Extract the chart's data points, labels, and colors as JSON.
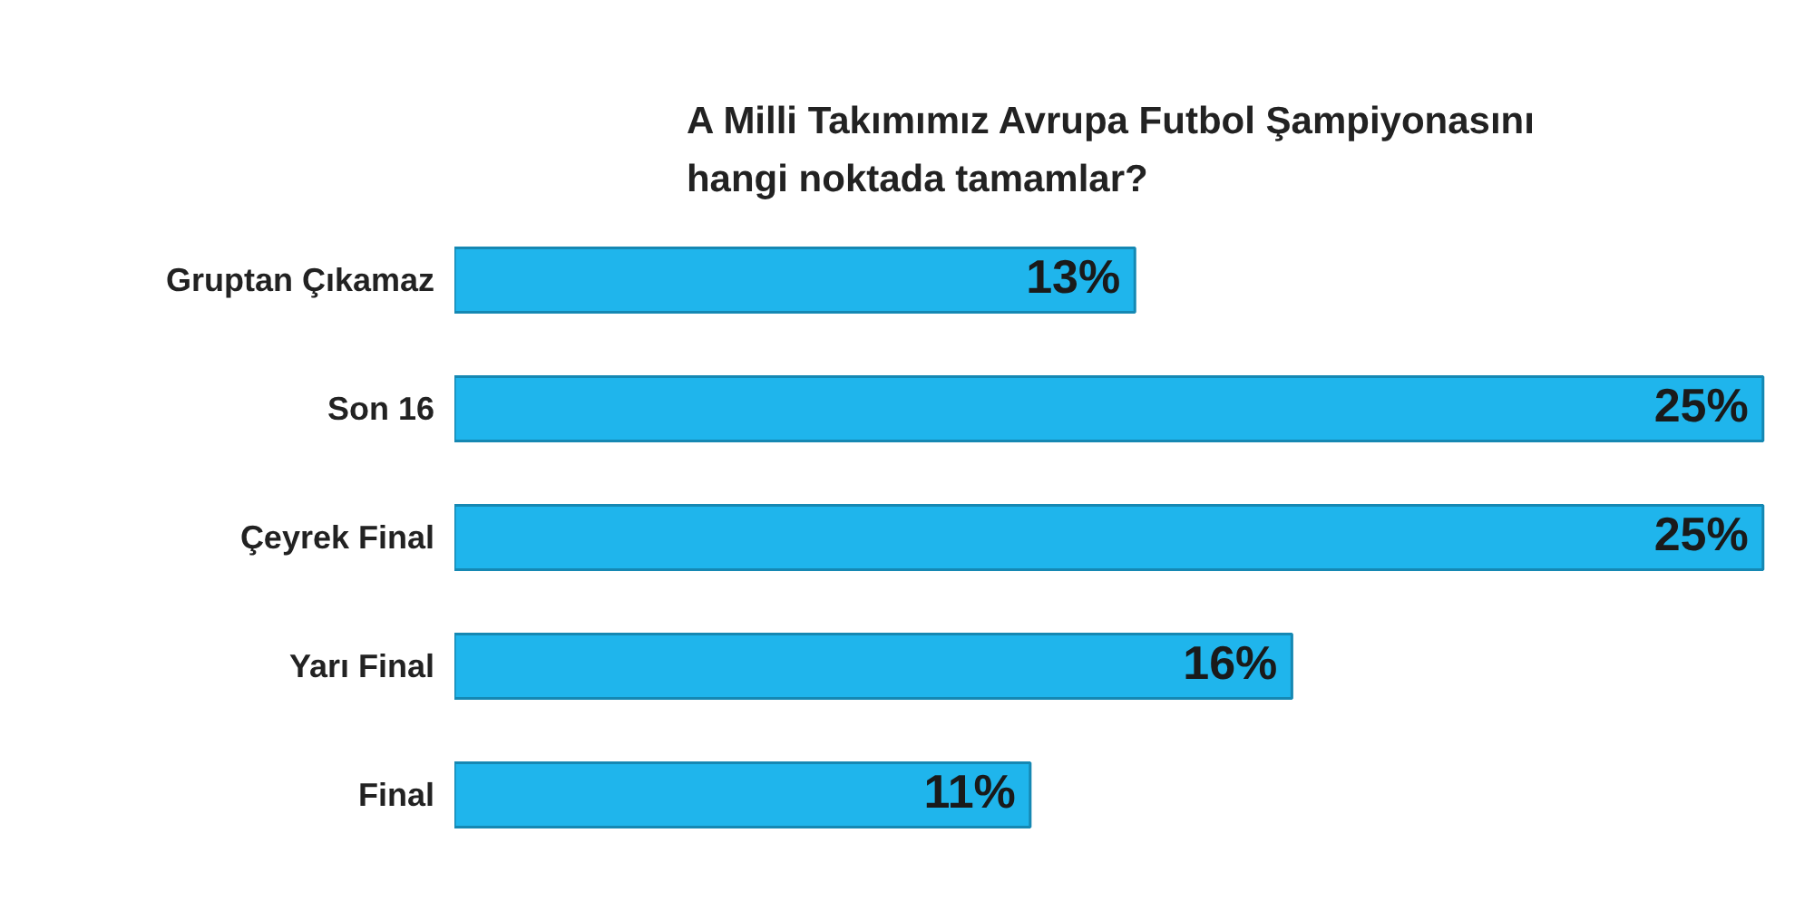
{
  "chart_data": {
    "type": "bar",
    "orientation": "horizontal",
    "title": "A Milli Takımımız Avrupa Futbol Şampiyonasını\nhangi noktada tamamlar?",
    "categories": [
      "Gruptan Çıkamaz",
      "Son 16",
      "Çeyrek Final",
      "Yarı Final",
      "Final"
    ],
    "values": [
      13,
      25,
      25,
      16,
      11
    ],
    "value_labels": [
      "13%",
      "25%",
      "25%",
      "16%",
      "11%"
    ],
    "color": "#1fb5ec",
    "grid": false
  }
}
